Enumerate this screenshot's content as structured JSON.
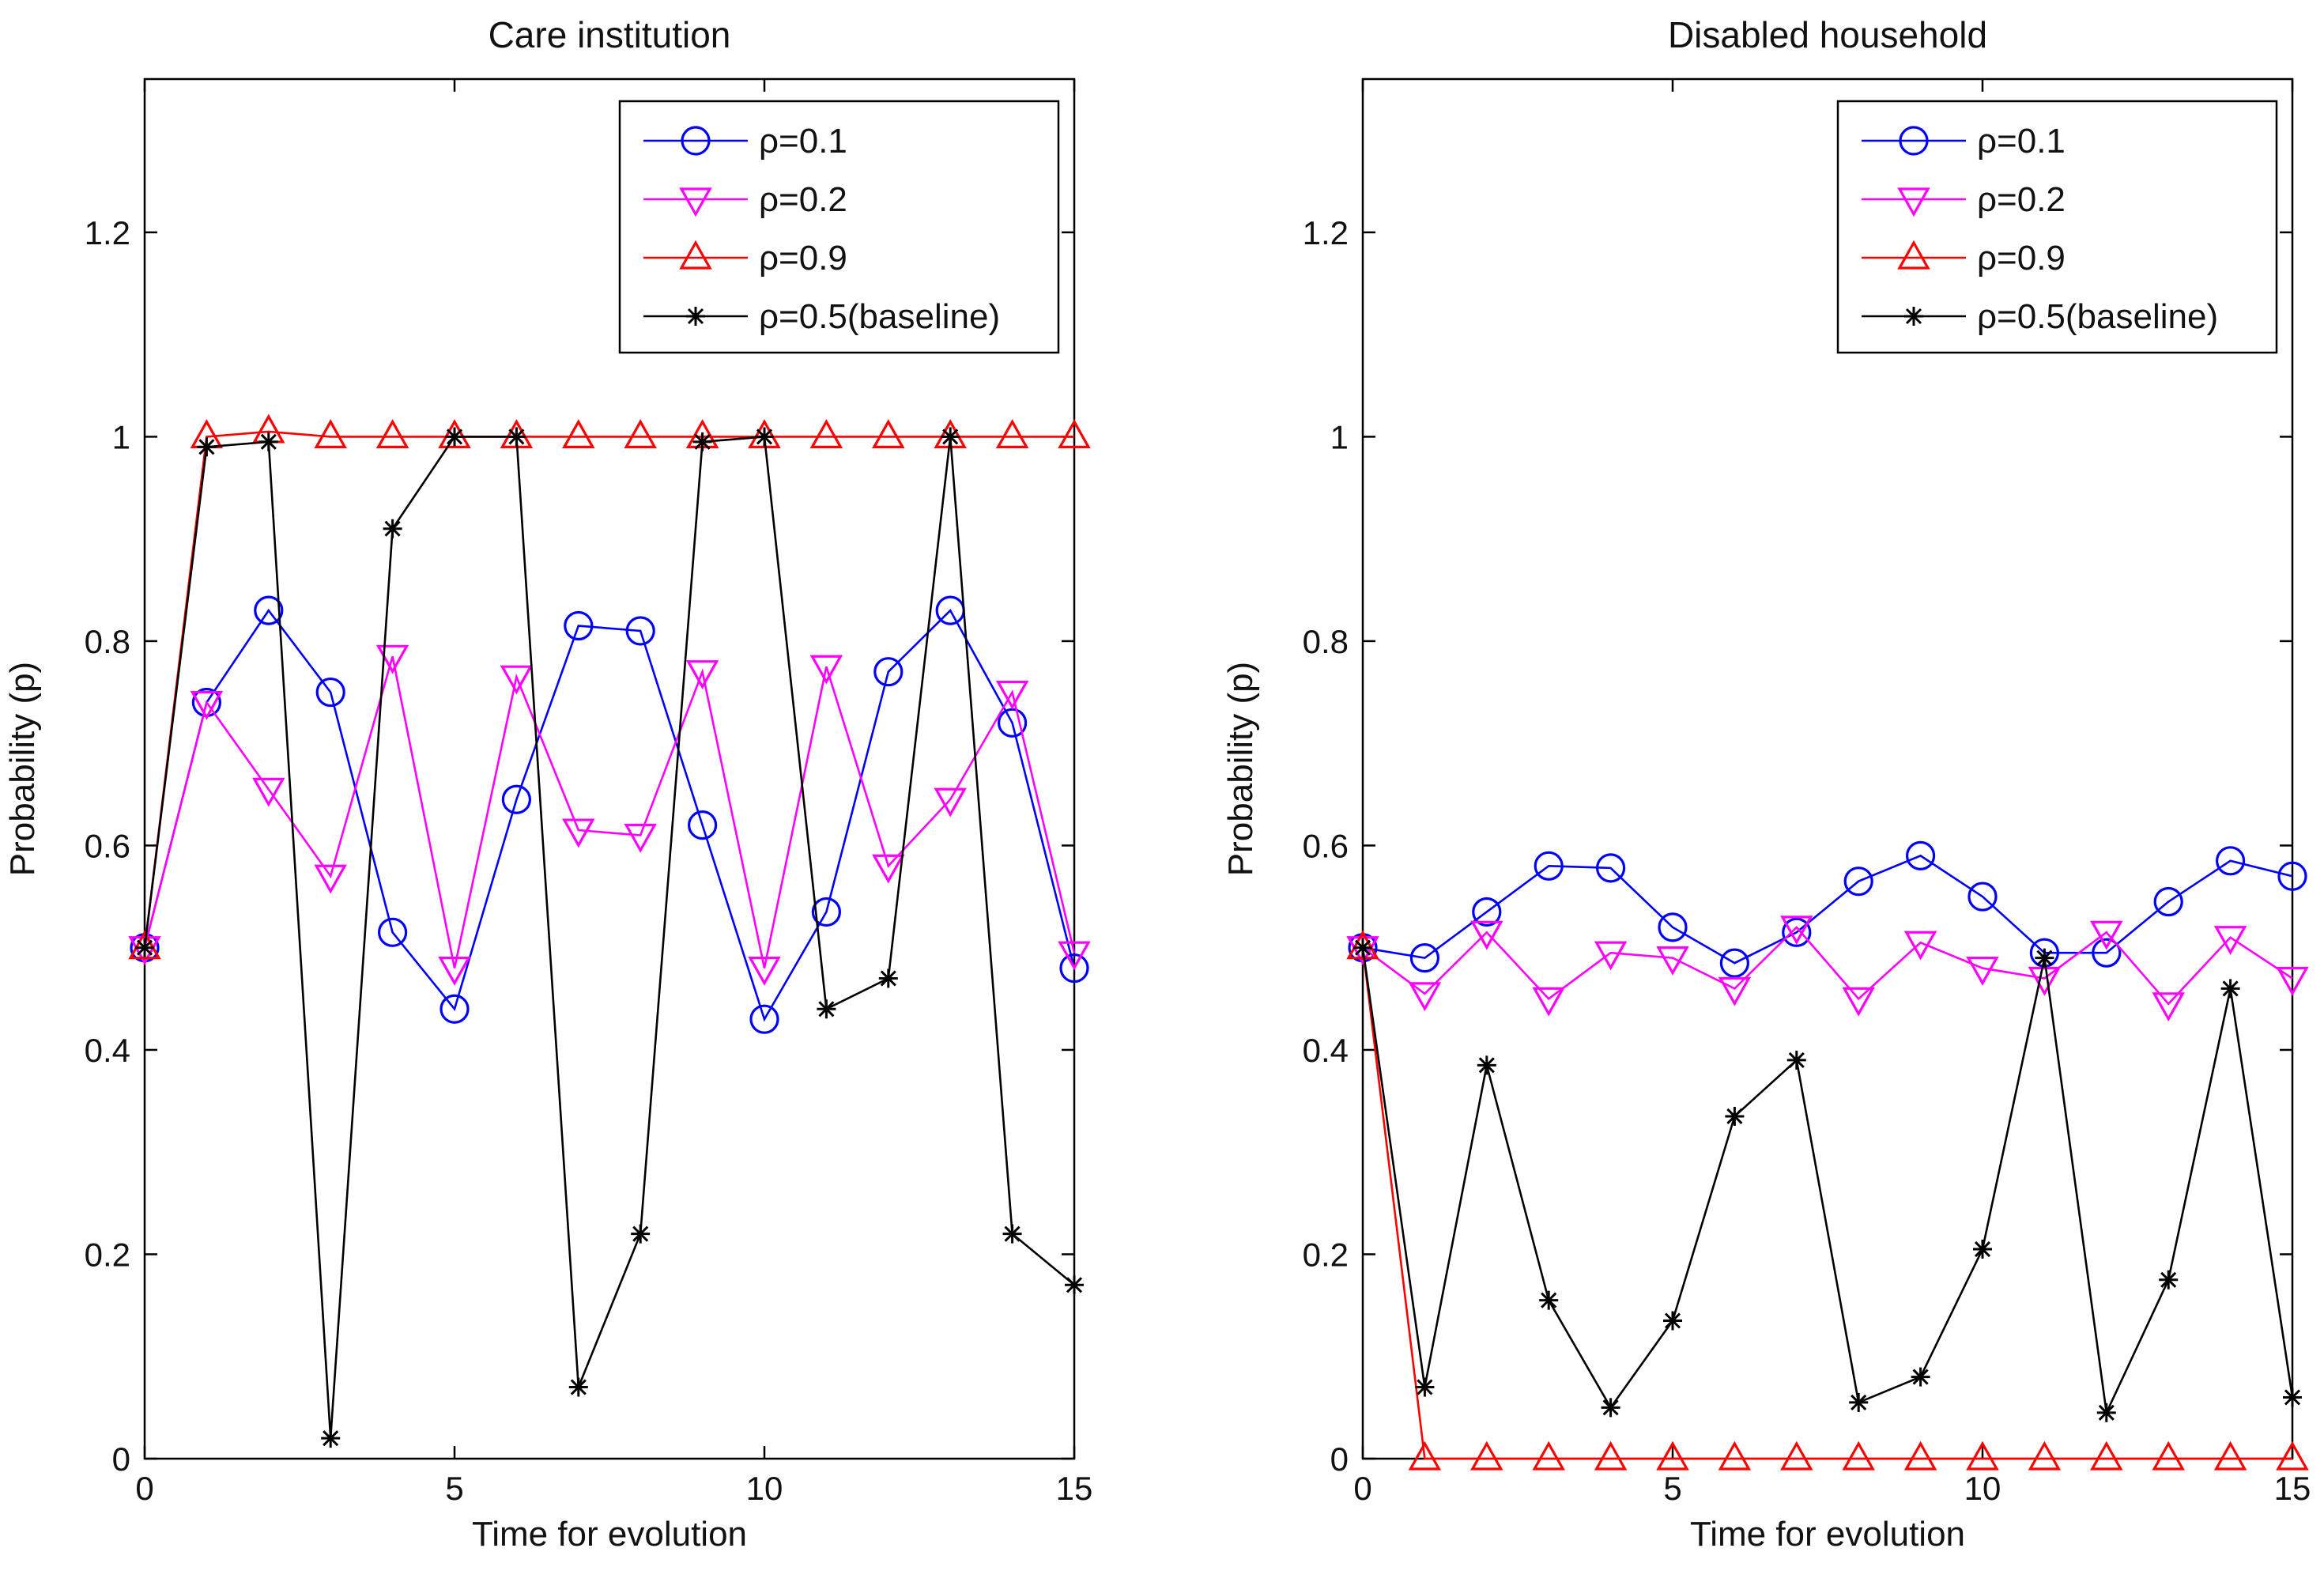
{
  "chart_data": [
    {
      "type": "line",
      "title": "Care institution",
      "xlabel": "Time for evolution",
      "ylabel": "Probability (p)",
      "xlim": [
        0,
        15
      ],
      "ylim": [
        0,
        1.35
      ],
      "xticks": [
        0,
        5,
        10,
        15
      ],
      "yticks": [
        0,
        0.2,
        0.4,
        0.6,
        0.8,
        1,
        1.2
      ],
      "ytick_labels": [
        "0",
        "0.2",
        "0.4",
        "0.6",
        "0.8",
        "1",
        "1.2"
      ],
      "legend_position": "top-right",
      "x": [
        0,
        1,
        2,
        3,
        4,
        5,
        6,
        7,
        8,
        9,
        10,
        11,
        12,
        13,
        14,
        15
      ],
      "series": [
        {
          "name": "ρ=0.1",
          "color": "#0000ff",
          "marker": "circle",
          "values": [
            0.5,
            0.74,
            0.83,
            0.75,
            0.515,
            0.44,
            0.645,
            0.815,
            0.81,
            0.62,
            0.43,
            0.535,
            0.77,
            0.83,
            0.72,
            0.48
          ]
        },
        {
          "name": "ρ=0.2",
          "color": "#ff00ff",
          "marker": "triangle-down",
          "values": [
            0.5,
            0.74,
            0.655,
            0.57,
            0.785,
            0.48,
            0.765,
            0.615,
            0.61,
            0.77,
            0.48,
            0.775,
            0.58,
            0.645,
            0.75,
            0.495
          ]
        },
        {
          "name": "ρ=0.9",
          "color": "#ff0000",
          "marker": "triangle-up",
          "values": [
            0.5,
            1.0,
            1.005,
            1.0,
            1.0,
            1.0,
            1.0,
            1.0,
            1.0,
            1.0,
            1.0,
            1.0,
            1.0,
            1.0,
            1.0,
            1.0
          ]
        },
        {
          "name": "ρ=0.5(baseline)",
          "color": "#000000",
          "marker": "star",
          "values": [
            0.5,
            0.99,
            0.995,
            0.02,
            0.91,
            1.0,
            1.0,
            0.07,
            0.22,
            0.995,
            1.0,
            0.44,
            0.47,
            1.0,
            0.22,
            0.17
          ]
        }
      ]
    },
    {
      "type": "line",
      "title": "Disabled household",
      "xlabel": "Time for evolution",
      "ylabel": "Probability (p)",
      "xlim": [
        0,
        15
      ],
      "ylim": [
        0,
        1.35
      ],
      "xticks": [
        0,
        5,
        10,
        15
      ],
      "yticks": [
        0,
        0.2,
        0.4,
        0.6,
        0.8,
        1,
        1.2
      ],
      "ytick_labels": [
        "0",
        "0.2",
        "0.4",
        "0.6",
        "0.8",
        "1",
        "1.2"
      ],
      "legend_position": "top-right",
      "x": [
        0,
        1,
        2,
        3,
        4,
        5,
        6,
        7,
        8,
        9,
        10,
        11,
        12,
        13,
        14,
        15
      ],
      "series": [
        {
          "name": "ρ=0.1",
          "color": "#0000ff",
          "marker": "circle",
          "values": [
            0.5,
            0.49,
            0.535,
            0.58,
            0.578,
            0.52,
            0.485,
            0.515,
            0.565,
            0.59,
            0.55,
            0.495,
            0.495,
            0.545,
            0.585,
            0.57
          ]
        },
        {
          "name": "ρ=0.2",
          "color": "#ff00ff",
          "marker": "triangle-down",
          "values": [
            0.5,
            0.455,
            0.515,
            0.45,
            0.495,
            0.49,
            0.46,
            0.52,
            0.45,
            0.505,
            0.48,
            0.47,
            0.515,
            0.445,
            0.51,
            0.47
          ]
        },
        {
          "name": "ρ=0.9",
          "color": "#ff0000",
          "marker": "triangle-up",
          "values": [
            0.5,
            0.0,
            0.0,
            0.0,
            0.0,
            0.0,
            0.0,
            0.0,
            0.0,
            0.0,
            0.0,
            0.0,
            0.0,
            0.0,
            0.0,
            0.0
          ]
        },
        {
          "name": "ρ=0.5(baseline)",
          "color": "#000000",
          "marker": "star",
          "values": [
            0.5,
            0.07,
            0.385,
            0.155,
            0.05,
            0.135,
            0.335,
            0.39,
            0.055,
            0.08,
            0.205,
            0.49,
            0.045,
            0.175,
            0.46,
            0.06
          ]
        }
      ]
    }
  ]
}
